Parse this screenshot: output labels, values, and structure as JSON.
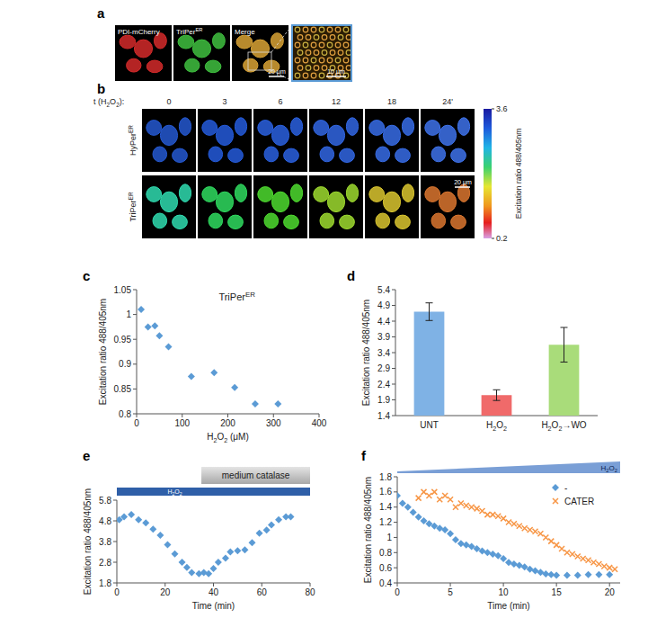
{
  "images": {
    "a": {
      "panel_label": "a",
      "channels": [
        "PDI-mCherry",
        "TriPerER",
        "Merge"
      ],
      "scale_bars": [
        "20 μm",
        "10 μm"
      ]
    },
    "b": {
      "panel_label": "b",
      "time_title": "t (H2O2):",
      "time_labels": [
        "0",
        "3",
        "6",
        "12",
        "18",
        "24'"
      ],
      "rows": [
        "HyPerER",
        "TriPerER"
      ],
      "scale_bar": "20 μm",
      "colorbar": {
        "range": [
          0.2,
          3.6
        ],
        "ticks": [
          3.6,
          0.2
        ],
        "label": "Excitation ratio 488/405nm"
      }
    }
  },
  "chart_data": [
    {
      "type": "scatter",
      "panel_label": "c",
      "title": "TriPerER",
      "x": [
        10,
        25,
        40,
        50,
        70,
        120,
        170,
        215,
        260,
        310
      ],
      "values": [
        1.01,
        0.975,
        0.977,
        0.957,
        0.935,
        0.875,
        0.883,
        0.853,
        0.82,
        0.82
      ],
      "xlim": [
        0,
        400
      ],
      "xticks": [
        0,
        100,
        200,
        300,
        400
      ],
      "ylim": [
        0.8,
        1.05
      ],
      "yticks": [
        0.8,
        0.85,
        0.9,
        0.95,
        1,
        1.05
      ],
      "x_label": "H2O2 (μM)",
      "y_label": "Excitation ratio 488/405nm",
      "color": "#5b9bd5",
      "marker": "diamond",
      "grid": false
    },
    {
      "type": "bar",
      "panel_label": "d",
      "categories": [
        "UNT",
        "H2O2",
        "H2O2→WO"
      ],
      "values": [
        4.7,
        2.05,
        3.65
      ],
      "errors": [
        0.28,
        0.17,
        0.55
      ],
      "colors": [
        "#7fb2e5",
        "#f06a6a",
        "#a9dc7a"
      ],
      "ylim": [
        1.4,
        5.4
      ],
      "yticks": [
        1.4,
        1.9,
        2.4,
        2.9,
        3.4,
        3.9,
        4.4,
        4.9,
        5.4
      ],
      "y_label": "Excitation ratio 488/405nm",
      "grid": false
    },
    {
      "type": "scatter",
      "panel_label": "e",
      "x": [
        1,
        3,
        6,
        9,
        12,
        15,
        18,
        21,
        24,
        27,
        29,
        31,
        34,
        36,
        38,
        40,
        42,
        45,
        47,
        50,
        53,
        56,
        59,
        62,
        64,
        67,
        70,
        72
      ],
      "values": [
        4.85,
        5.0,
        5.1,
        4.85,
        4.7,
        4.4,
        4.1,
        3.65,
        3.2,
        2.8,
        2.55,
        2.3,
        2.25,
        2.3,
        2.25,
        2.5,
        2.8,
        3.0,
        3.3,
        3.35,
        3.4,
        3.75,
        4.2,
        4.35,
        4.6,
        4.85,
        5.0,
        5.0
      ],
      "xlim": [
        0,
        80
      ],
      "xticks": [
        0,
        20,
        40,
        60,
        80
      ],
      "ylim": [
        1.8,
        5.8
      ],
      "yticks": [
        1.8,
        2.8,
        3.8,
        4.8,
        5.8
      ],
      "x_label": "Time (min)",
      "y_label": "Excitation ratio 488/405nm",
      "color": "#5b9bd5",
      "marker": "diamond",
      "grid": false,
      "annotations": [
        {
          "type": "bar",
          "text": "H2O2",
          "x": [
            0,
            80
          ]
        },
        {
          "type": "box",
          "text": "medium catalase",
          "x": [
            35,
            80
          ]
        }
      ]
    },
    {
      "type": "scatter",
      "panel_label": "f",
      "series": [
        {
          "name": "-",
          "color": "#5b9bd5",
          "marker": "diamond",
          "x": [
            0,
            0.5,
            1,
            1.5,
            2,
            2.5,
            3,
            3.5,
            4,
            4.5,
            5,
            5.5,
            6,
            6.5,
            7,
            7.5,
            8,
            8.5,
            9,
            9.5,
            10,
            10.5,
            11,
            11.5,
            12,
            12.5,
            13,
            13.5,
            14,
            14.5,
            15,
            16,
            17,
            18,
            19,
            20
          ],
          "values": [
            1.55,
            1.45,
            1.4,
            1.33,
            1.27,
            1.22,
            1.18,
            1.15,
            1.12,
            1.1,
            1.05,
            0.97,
            0.92,
            0.9,
            0.88,
            0.85,
            0.82,
            0.8,
            0.78,
            0.76,
            0.72,
            0.67,
            0.65,
            0.63,
            0.61,
            0.58,
            0.56,
            0.54,
            0.52,
            0.51,
            0.5,
            0.5,
            0.5,
            0.51,
            0.51,
            0.51
          ]
        },
        {
          "name": "CATER",
          "color": "#f79646",
          "marker": "x",
          "x": [
            2,
            2.5,
            3,
            3.5,
            4,
            4.5,
            5,
            5.5,
            6,
            6.5,
            7,
            7.5,
            8,
            8.5,
            9,
            9.5,
            10,
            10.5,
            11,
            11.5,
            12,
            12.5,
            13,
            13.5,
            14,
            14.5,
            15,
            15.5,
            16,
            16.5,
            17,
            17.5,
            18,
            18.5,
            19,
            19.5,
            20,
            20.5
          ],
          "values": [
            1.52,
            1.6,
            1.55,
            1.6,
            1.5,
            1.55,
            1.5,
            1.4,
            1.45,
            1.42,
            1.4,
            1.38,
            1.35,
            1.3,
            1.3,
            1.28,
            1.25,
            1.2,
            1.18,
            1.15,
            1.12,
            1.1,
            1.08,
            1.05,
            1.0,
            0.95,
            0.9,
            0.85,
            0.8,
            0.78,
            0.75,
            0.72,
            0.7,
            0.67,
            0.65,
            0.62,
            0.6,
            0.58
          ]
        }
      ],
      "xlim": [
        0,
        21
      ],
      "xticks": [
        0,
        5,
        10,
        15,
        20
      ],
      "ylim": [
        0.4,
        1.8
      ],
      "yticks": [
        0.4,
        0.6,
        0.8,
        1,
        1.2,
        1.4,
        1.6,
        1.8
      ],
      "x_label": "Time (min)",
      "y_label": "Excitation ratio 488/405nm",
      "legend": "top right",
      "grid": false,
      "annotations": [
        {
          "type": "ramp",
          "text": "H2O2",
          "x": [
            0,
            21
          ]
        }
      ]
    }
  ]
}
